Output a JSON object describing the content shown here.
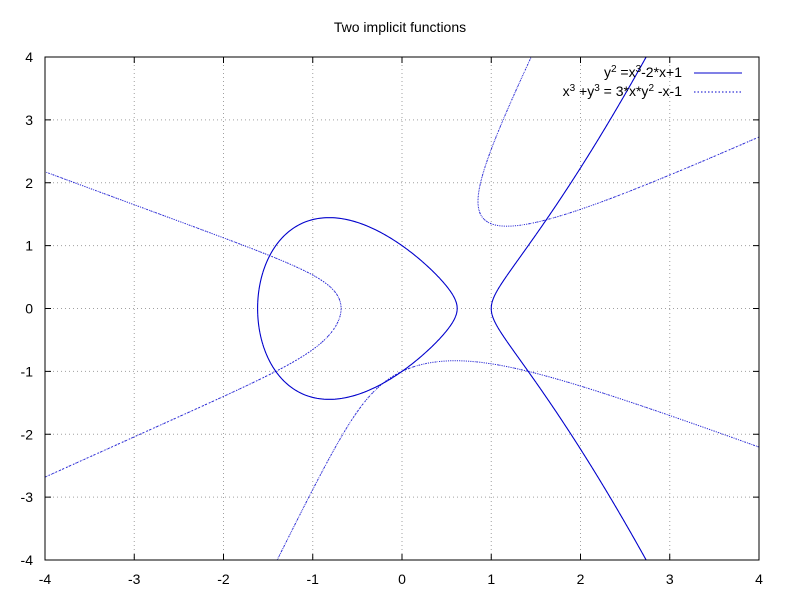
{
  "chart_data": {
    "type": "line",
    "title": "Two implicit functions",
    "xlabel": "",
    "ylabel": "",
    "xlim": [
      -4,
      4
    ],
    "ylim": [
      -4,
      4
    ],
    "x_ticks": [
      "-4",
      "-3",
      "-2",
      "-1",
      "0",
      "1",
      "2",
      "3",
      "4"
    ],
    "y_ticks": [
      "4",
      "3",
      "2",
      "1",
      "0",
      "-1",
      "-2",
      "-3",
      "-4"
    ],
    "grid": true,
    "legend_position": "top-right",
    "series": [
      {
        "name": "y^2 =x^3 -2*x+1",
        "legend": {
          "base1": "y",
          "sup1": "2",
          "mid": " =x",
          "sup2": "3",
          "rest": "-2*x+1"
        },
        "style": "solid",
        "equation": "y^2 = x^3 - 2*x + 1"
      },
      {
        "name": "x^3 +y^3 = 3*x*y^2 -x-1",
        "legend": {
          "p1": "x",
          "s1": "3",
          "p2": " +y",
          "s2": "3",
          "p3": " = 3*x*y",
          "s3": "2",
          "p4": " -x-1"
        },
        "style": "dotted",
        "equation": "x^3 + y^3 = 3*x*y^2 - x - 1"
      }
    ],
    "colors": {
      "line": "#0000cc",
      "grid": "#a0a0a0",
      "frame": "#000000"
    }
  }
}
